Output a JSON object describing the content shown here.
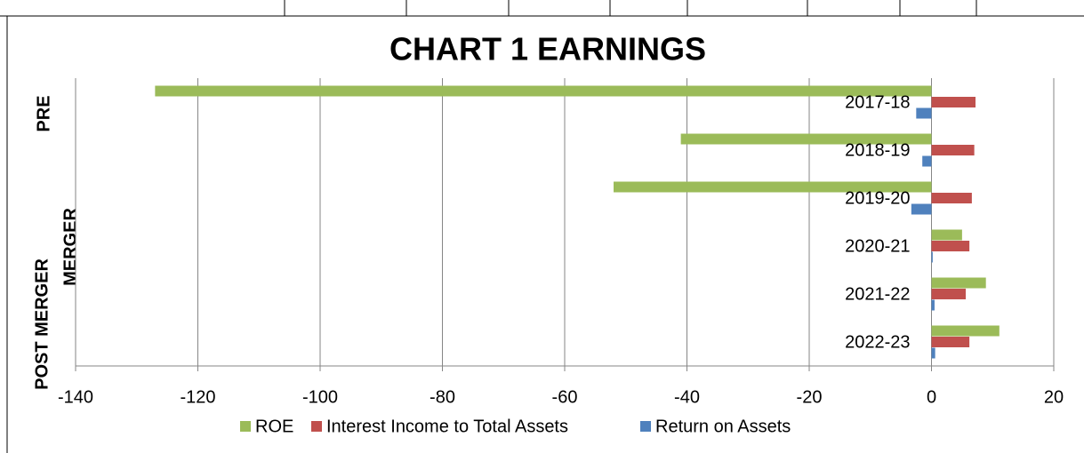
{
  "chart_data": {
    "type": "hbar",
    "title": "CHART 1 EARNINGS",
    "categories": [
      "2017-18",
      "2018-19",
      "2019-20",
      "2020-21",
      "2021-22",
      "2022-23"
    ],
    "group_labels": [
      "PRE",
      "POST MERGER",
      "MERGER"
    ],
    "series": [
      {
        "name": "ROE",
        "color": "#9bbb59",
        "values": [
          -127,
          -41,
          -52,
          5,
          8.9,
          11.1
        ]
      },
      {
        "name": "Interest Income to Total Assets",
        "color": "#c0504d",
        "values": [
          7.2,
          7,
          6.6,
          6.2,
          5.6,
          6.2
        ]
      },
      {
        "name": "Return on Assets",
        "color": "#4f81bd",
        "values": [
          -2.5,
          -1.5,
          -3.3,
          0.2,
          0.5,
          0.6
        ]
      }
    ],
    "xlim": [
      -140,
      20
    ],
    "xticks": [
      -140,
      -120,
      -100,
      -80,
      -60,
      -40,
      -20,
      0,
      20
    ],
    "grid": true,
    "legend": "bottom"
  }
}
